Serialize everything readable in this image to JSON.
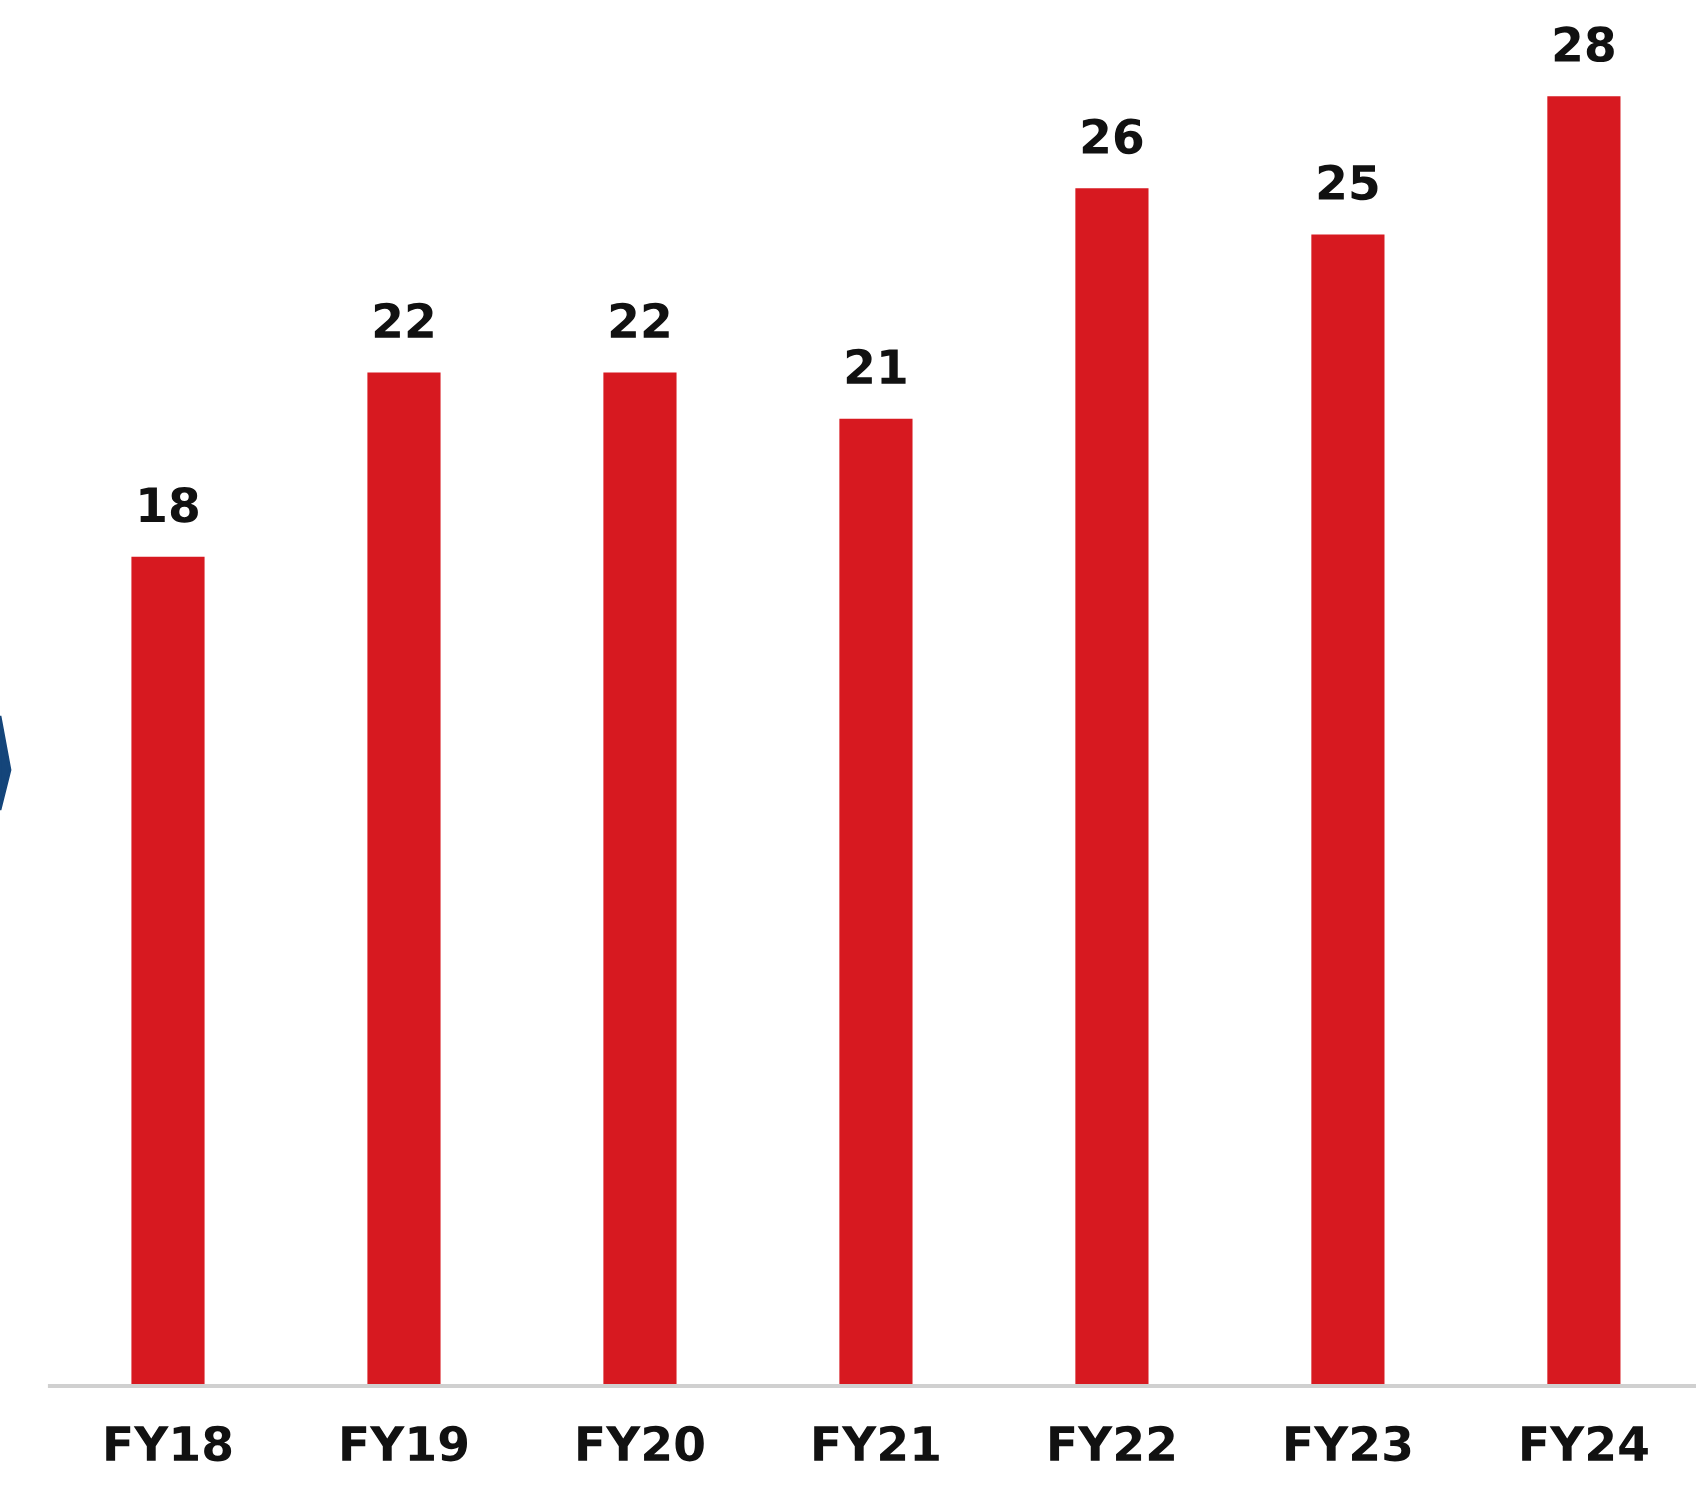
{
  "chart_data": {
    "type": "bar",
    "categories": [
      "FY18",
      "FY19",
      "FY20",
      "FY21",
      "FY22",
      "FY23",
      "FY24"
    ],
    "values": [
      18,
      22,
      22,
      21,
      26,
      25,
      28
    ],
    "color": "#d71920",
    "data_labels": true,
    "grid": false,
    "legend": false
  }
}
